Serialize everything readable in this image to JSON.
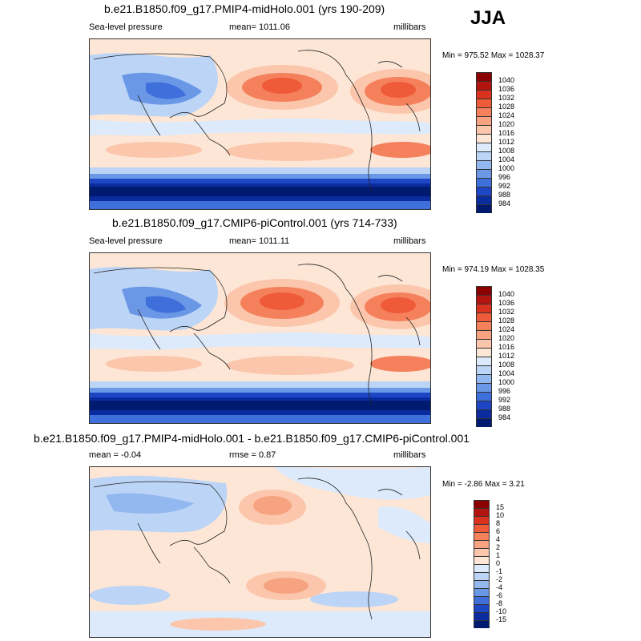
{
  "season": "JJA",
  "panels": [
    {
      "title": "b.e21.B1850.f09_g17.PMIP4-midHolo.001 (yrs 190-209)",
      "left_label": "Sea-level pressure",
      "center_label": "mean= 1011.06",
      "right_label": "millibars",
      "minmax": "Min = 975.52 Max = 1028.37",
      "levels": [
        "1040",
        "1036",
        "1032",
        "1028",
        "1024",
        "1020",
        "1016",
        "1012",
        "1008",
        "1004",
        "1000",
        "996",
        "992",
        "988",
        "984"
      ],
      "colors": [
        "#8b0000",
        "#b2150f",
        "#d9321f",
        "#ef5a38",
        "#f5805c",
        "#f7a382",
        "#fbc6ab",
        "#fde6d6",
        "#dceafb",
        "#bcd4f6",
        "#93b7ef",
        "#6a97e6",
        "#3f6fdb",
        "#1c46c4",
        "#0a2c9e",
        "#001a70"
      ]
    },
    {
      "title": "b.e21.B1850.f09_g17.CMIP6-piControl.001 (yrs 714-733)",
      "left_label": "Sea-level pressure",
      "center_label": "mean= 1011.11",
      "right_label": "millibars",
      "minmax": "Min = 974.19 Max = 1028.35",
      "levels": [
        "1040",
        "1036",
        "1032",
        "1028",
        "1024",
        "1020",
        "1016",
        "1012",
        "1008",
        "1004",
        "1000",
        "996",
        "992",
        "988",
        "984"
      ],
      "colors": [
        "#8b0000",
        "#b2150f",
        "#d9321f",
        "#ef5a38",
        "#f5805c",
        "#f7a382",
        "#fbc6ab",
        "#fde6d6",
        "#dceafb",
        "#bcd4f6",
        "#93b7ef",
        "#6a97e6",
        "#3f6fdb",
        "#1c46c4",
        "#0a2c9e",
        "#001a70"
      ]
    },
    {
      "title": "b.e21.B1850.f09_g17.PMIP4-midHolo.001 - b.e21.B1850.f09_g17.CMIP6-piControl.001",
      "left_label": "mean =  -0.04",
      "center_label": "rmse =   0.87",
      "right_label": "millibars",
      "minmax": "Min =  -2.86 Max =   3.21",
      "levels": [
        "15",
        "10",
        "8",
        "6",
        "4",
        "2",
        "1",
        "0",
        "-1",
        "-2",
        "-4",
        "-6",
        "-8",
        "-10",
        "-15"
      ],
      "colors": [
        "#8b0000",
        "#b2150f",
        "#d9321f",
        "#ef5a38",
        "#f5805c",
        "#f7a382",
        "#fbc6ab",
        "#fde6d6",
        "#dceafb",
        "#bcd4f6",
        "#93b7ef",
        "#6a97e6",
        "#3f6fdb",
        "#1c46c4",
        "#0a2c9e",
        "#001a70"
      ]
    }
  ]
}
